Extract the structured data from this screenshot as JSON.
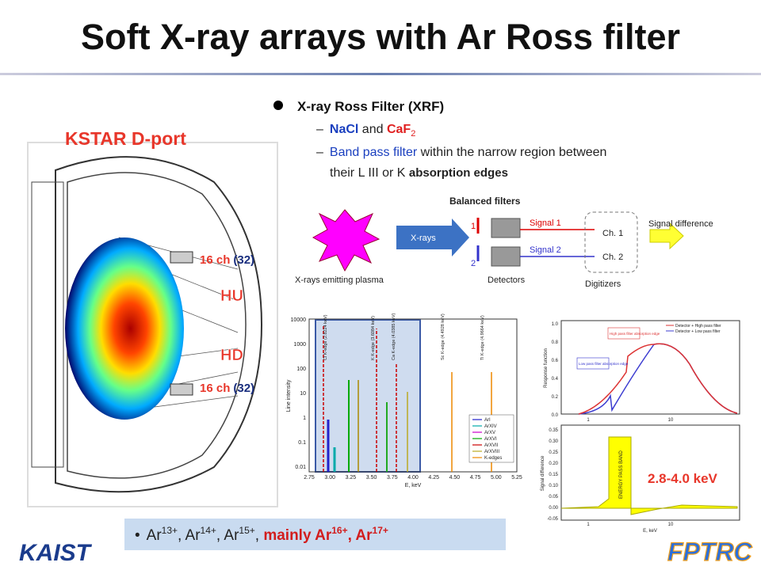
{
  "title": "Soft X-ray arrays with Ar Ross filter",
  "bullets": {
    "heading": "X-ray Ross Filter (XRF)",
    "item1": {
      "dash": "–",
      "nacl": "NaCl",
      "and": " and ",
      "caf": "CaF",
      "sub": "2"
    },
    "item2": {
      "dash": "–",
      "band": "Band pass filter",
      "rest1": " within the narrow region between",
      "rest2": "their L III or K ",
      "edges": "absorption edges"
    }
  },
  "kstar": {
    "label": "KSTAR D-port",
    "hu": "HU",
    "hd": "HD",
    "ch_top": "16 ch",
    "ch_top_n": "(32)",
    "ch_bot": "16 ch",
    "ch_bot_n": "(32)"
  },
  "diagram": {
    "balanced": "Balanced filters",
    "xrays": "X-rays",
    "one": "1",
    "two": "2",
    "signal1": "Signal 1",
    "signal2": "Signal 2",
    "ch1": "Ch. 1",
    "ch2": "Ch. 2",
    "difference": "Signal difference",
    "plasma": "X-rays emitting plasma",
    "detectors": "Detectors",
    "digitizers": "Digitizers"
  },
  "line_plot": {
    "ylabel": "Line intensity",
    "xlabel": "E, keV",
    "yticks": [
      "10000",
      "1000",
      "100",
      "10",
      "1",
      "0.1",
      "0.01"
    ],
    "xticks": [
      "2.75",
      "3.00",
      "3.25",
      "3.50",
      "3.75",
      "4.00",
      "4.25",
      "4.50",
      "4.75",
      "5.00",
      "5.25"
    ],
    "edges": [
      "Cl K-edge (2.8224 keV)",
      "K K-edge (3.6084 keV)",
      "Ca K-edge (4.0385 keV)",
      "Sc K-edge (4.4928 keV)",
      "Ti K-edge (4.9664 keV)"
    ],
    "legend": [
      "ArI",
      "ArXIV",
      "ArXV",
      "ArXVI",
      "ArXVII",
      "ArXVIII",
      "K-edges"
    ]
  },
  "response_plot": {
    "ylabel": "Response function",
    "yticks": [
      "1.0",
      "0.8",
      "0.6",
      "0.4",
      "0.2",
      "0.0"
    ],
    "xticks": [
      "1",
      "10"
    ],
    "legend": [
      "Detector + High pass filter",
      "Detector + Low pass filter"
    ],
    "high_note": "High pass filter absorption edge",
    "low_note": "Low pass filter absorption edge"
  },
  "difference_plot": {
    "ylabel": "Signal difference",
    "xlabel": "E, keV",
    "yticks": [
      "0.35",
      "0.30",
      "0.25",
      "0.20",
      "0.15",
      "0.10",
      "0.05",
      "0.00",
      "-0.05"
    ],
    "xticks": [
      "1",
      "10"
    ],
    "band": "ENERGY PASS BAND"
  },
  "energy_range": "2.8-4.0 keV",
  "note": {
    "bullet": "•",
    "ar13": "Ar",
    "s13": "13+",
    "c1": ", ",
    "ar14": "Ar",
    "s14": "14+",
    "c2": ", ",
    "ar15": "Ar",
    "s15": "15+",
    "c3": ", ",
    "mainly": "mainly Ar",
    "s16": "16+",
    "c4": ", Ar",
    "s17": "17+"
  },
  "logos": {
    "kaist": "KAIST",
    "fptrc": "FPTRC"
  }
}
